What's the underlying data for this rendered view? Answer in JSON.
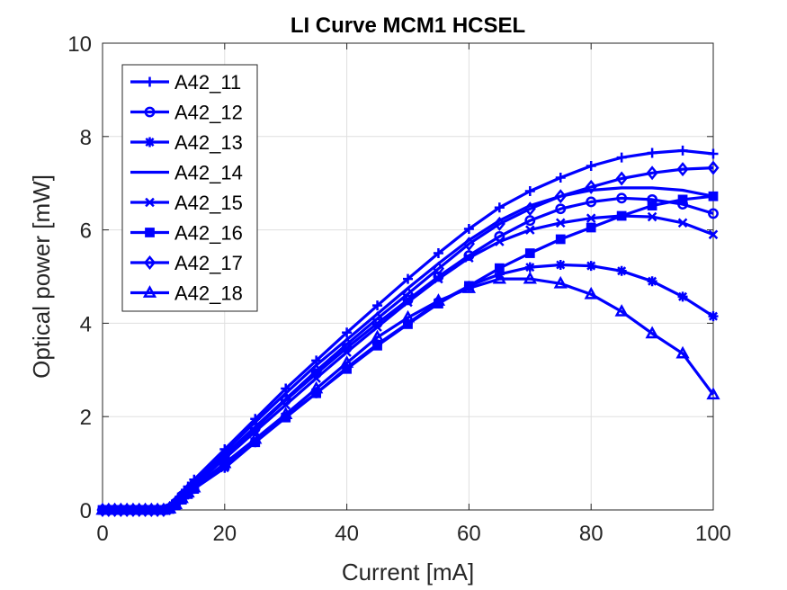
{
  "chart_data": {
    "type": "line",
    "title": "LI Curve MCM1 HCSEL",
    "xlabel": "Current [mA]",
    "ylabel": "Optical power [mW]",
    "xlim": [
      0,
      100
    ],
    "ylim": [
      0,
      10
    ],
    "xticks": [
      0,
      20,
      40,
      60,
      80,
      100
    ],
    "yticks": [
      0,
      2,
      4,
      6,
      8,
      10
    ],
    "grid": true,
    "legend_position": "top-left",
    "line_color": "#0000ff",
    "x": [
      0,
      1,
      2,
      3,
      4,
      5,
      6,
      7,
      8,
      9,
      10,
      11,
      12,
      13,
      14,
      15,
      20,
      25,
      30,
      35,
      40,
      45,
      50,
      55,
      60,
      65,
      70,
      75,
      80,
      85,
      90,
      95,
      100
    ],
    "series": [
      {
        "name": "A42_11",
        "marker": "plus",
        "values": [
          0,
          0,
          0,
          0,
          0,
          0,
          0,
          0,
          0,
          0,
          0,
          0.05,
          0.2,
          0.35,
          0.5,
          0.65,
          1.3,
          1.95,
          2.6,
          3.2,
          3.8,
          4.38,
          4.95,
          5.5,
          6.02,
          6.48,
          6.83,
          7.12,
          7.37,
          7.55,
          7.65,
          7.7,
          7.63
        ]
      },
      {
        "name": "A42_12",
        "marker": "circle",
        "values": [
          0,
          0,
          0,
          0,
          0,
          0,
          0,
          0,
          0,
          0,
          0,
          0.03,
          0.15,
          0.3,
          0.42,
          0.55,
          1.15,
          1.75,
          2.35,
          2.92,
          3.47,
          4.0,
          4.5,
          5.0,
          5.45,
          5.86,
          6.2,
          6.45,
          6.6,
          6.68,
          6.65,
          6.55,
          6.35
        ]
      },
      {
        "name": "A42_13",
        "marker": "asterisk",
        "values": [
          0,
          0,
          0,
          0,
          0,
          0,
          0,
          0,
          0,
          0,
          0,
          0.02,
          0.1,
          0.22,
          0.33,
          0.45,
          0.9,
          1.45,
          2.0,
          2.5,
          3.05,
          3.55,
          4.0,
          4.45,
          4.8,
          5.05,
          5.2,
          5.25,
          5.23,
          5.12,
          4.9,
          4.57,
          4.15
        ]
      },
      {
        "name": "A42_14",
        "marker": "none",
        "values": [
          0,
          0,
          0,
          0,
          0,
          0,
          0,
          0,
          0,
          0,
          0,
          0.05,
          0.18,
          0.33,
          0.46,
          0.6,
          1.25,
          1.88,
          2.5,
          3.1,
          3.65,
          4.2,
          4.75,
          5.28,
          5.78,
          6.2,
          6.52,
          6.72,
          6.85,
          6.9,
          6.9,
          6.85,
          6.72
        ]
      },
      {
        "name": "A42_15",
        "marker": "x",
        "values": [
          0,
          0,
          0,
          0,
          0,
          0,
          0,
          0,
          0,
          0,
          0,
          0.04,
          0.14,
          0.28,
          0.4,
          0.52,
          1.1,
          1.68,
          2.25,
          2.82,
          3.38,
          3.92,
          4.45,
          4.95,
          5.4,
          5.75,
          6.0,
          6.15,
          6.25,
          6.3,
          6.28,
          6.15,
          5.9
        ]
      },
      {
        "name": "A42_16",
        "marker": "square",
        "values": [
          0,
          0,
          0,
          0,
          0,
          0,
          0,
          0,
          0,
          0,
          0,
          0.02,
          0.1,
          0.22,
          0.34,
          0.45,
          0.95,
          1.45,
          1.98,
          2.5,
          3.02,
          3.52,
          3.98,
          4.42,
          4.8,
          5.18,
          5.5,
          5.8,
          6.05,
          6.3,
          6.52,
          6.65,
          6.72
        ]
      },
      {
        "name": "A42_17",
        "marker": "diamond",
        "values": [
          0,
          0,
          0,
          0,
          0,
          0,
          0,
          0,
          0,
          0,
          0,
          0.04,
          0.16,
          0.3,
          0.43,
          0.56,
          1.18,
          1.78,
          2.38,
          2.98,
          3.55,
          4.1,
          4.63,
          5.17,
          5.7,
          6.13,
          6.45,
          6.72,
          6.92,
          7.1,
          7.22,
          7.3,
          7.33
        ]
      },
      {
        "name": "A42_18",
        "marker": "triangle",
        "values": [
          0,
          0,
          0,
          0,
          0,
          0,
          0,
          0,
          0,
          0,
          0,
          0.03,
          0.12,
          0.25,
          0.37,
          0.48,
          1.0,
          1.52,
          2.05,
          2.6,
          3.15,
          3.7,
          4.12,
          4.48,
          4.75,
          4.95,
          4.95,
          4.85,
          4.62,
          4.25,
          3.78,
          3.35,
          2.47
        ]
      }
    ]
  }
}
